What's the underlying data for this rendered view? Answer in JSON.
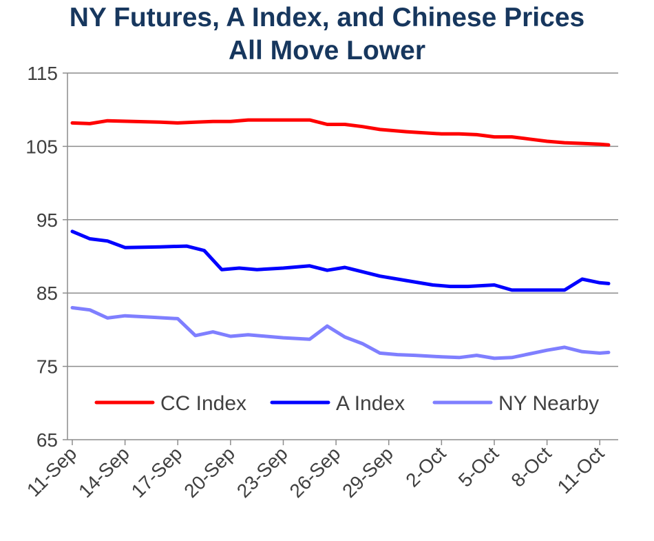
{
  "chart_data": {
    "type": "line",
    "title_line1": "NY Futures, A Index, and Chinese Prices",
    "title_line2": "All Move Lower",
    "ylim": [
      65,
      115
    ],
    "y_ticks": [
      "115",
      "105",
      "95",
      "85",
      "75",
      "65"
    ],
    "x_tick_labels": [
      "11-Sep",
      "14-Sep",
      "17-Sep",
      "20-Sep",
      "23-Sep",
      "26-Sep",
      "29-Sep",
      "2-Oct",
      "5-Oct",
      "8-Oct",
      "11-Oct"
    ],
    "x_tick_days": [
      0,
      3,
      6,
      9,
      12,
      15,
      18,
      21,
      24,
      27,
      30
    ],
    "grid": true,
    "legend_position": "inside-bottom",
    "series": [
      {
        "name": "CC Index",
        "color": "#ff0000",
        "points": [
          [
            0,
            108.2
          ],
          [
            1,
            108.1
          ],
          [
            2,
            108.5
          ],
          [
            3.5,
            108.4
          ],
          [
            5,
            108.3
          ],
          [
            6,
            108.2
          ],
          [
            7,
            108.3
          ],
          [
            8,
            108.4
          ],
          [
            9,
            108.4
          ],
          [
            10,
            108.6
          ],
          [
            12,
            108.6
          ],
          [
            13.5,
            108.6
          ],
          [
            14.5,
            108.0
          ],
          [
            15.5,
            108.0
          ],
          [
            16.5,
            107.7
          ],
          [
            17.5,
            107.3
          ],
          [
            19,
            107.0
          ],
          [
            21,
            106.7
          ],
          [
            22,
            106.7
          ],
          [
            23,
            106.6
          ],
          [
            24,
            106.3
          ],
          [
            25,
            106.3
          ],
          [
            26,
            106.0
          ],
          [
            27,
            105.7
          ],
          [
            28,
            105.5
          ],
          [
            29,
            105.4
          ],
          [
            30,
            105.3
          ],
          [
            30.5,
            105.2
          ]
        ]
      },
      {
        "name": "A Index",
        "color": "#0000ff",
        "points": [
          [
            0,
            93.4
          ],
          [
            1,
            92.4
          ],
          [
            2,
            92.1
          ],
          [
            3,
            91.2
          ],
          [
            5,
            91.3
          ],
          [
            6.5,
            91.4
          ],
          [
            7.5,
            90.8
          ],
          [
            8.5,
            88.2
          ],
          [
            9.5,
            88.4
          ],
          [
            10.5,
            88.2
          ],
          [
            12,
            88.4
          ],
          [
            13.5,
            88.7
          ],
          [
            14.5,
            88.1
          ],
          [
            15.5,
            88.5
          ],
          [
            16.5,
            87.9
          ],
          [
            17.5,
            87.3
          ],
          [
            19,
            86.7
          ],
          [
            20.5,
            86.1
          ],
          [
            21.5,
            85.9
          ],
          [
            22.5,
            85.9
          ],
          [
            24,
            86.1
          ],
          [
            25,
            85.4
          ],
          [
            26,
            85.4
          ],
          [
            28,
            85.4
          ],
          [
            29,
            86.9
          ],
          [
            30,
            86.4
          ],
          [
            30.5,
            86.3
          ]
        ]
      },
      {
        "name": "NY Nearby",
        "color": "#7f7fff",
        "points": [
          [
            0,
            83.0
          ],
          [
            1,
            82.7
          ],
          [
            2,
            81.6
          ],
          [
            3,
            81.9
          ],
          [
            4.5,
            81.7
          ],
          [
            6,
            81.5
          ],
          [
            7,
            79.2
          ],
          [
            8,
            79.7
          ],
          [
            9,
            79.1
          ],
          [
            10,
            79.3
          ],
          [
            12,
            78.9
          ],
          [
            13.5,
            78.7
          ],
          [
            14.5,
            80.5
          ],
          [
            15.5,
            79.0
          ],
          [
            16.5,
            78.1
          ],
          [
            17.5,
            76.8
          ],
          [
            18.5,
            76.6
          ],
          [
            19.5,
            76.5
          ],
          [
            21,
            76.3
          ],
          [
            22,
            76.2
          ],
          [
            23,
            76.5
          ],
          [
            24,
            76.1
          ],
          [
            25,
            76.2
          ],
          [
            26,
            76.7
          ],
          [
            27,
            77.2
          ],
          [
            28,
            77.6
          ],
          [
            29,
            77.0
          ],
          [
            30,
            76.8
          ],
          [
            30.5,
            76.9
          ]
        ]
      }
    ]
  }
}
